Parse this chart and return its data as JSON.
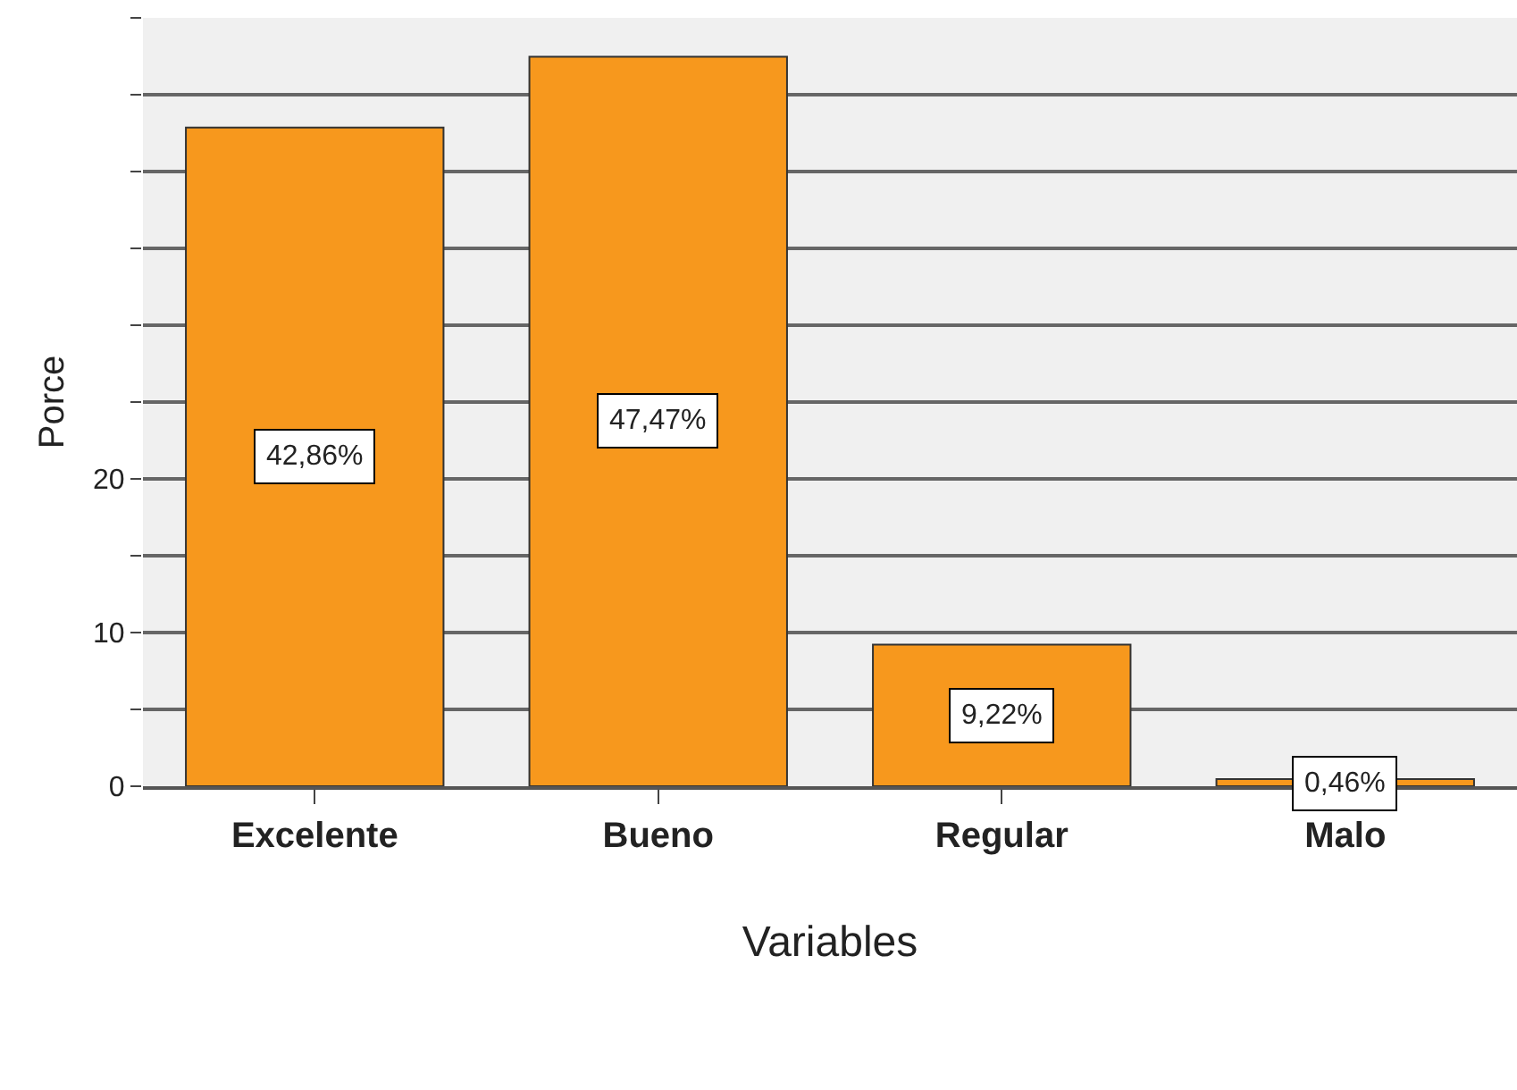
{
  "chart_data": {
    "type": "bar",
    "xlabel": "Variables",
    "ylabel": "Porce",
    "categories": [
      "Excelente",
      "Bueno",
      "Regular",
      "Malo"
    ],
    "values": [
      42.86,
      47.47,
      9.22,
      0.46
    ],
    "value_labels": [
      "42,86%",
      "47,47%",
      "9,22%",
      "0,46%"
    ],
    "color": "#f7981d",
    "ylim": [
      0,
      50
    ],
    "yticks": [
      0,
      {
        "value": 5,
        "label": null
      },
      10,
      {
        "value": 15,
        "label": null
      },
      20,
      {
        "value": 25,
        "label": null
      },
      {
        "value": 30,
        "label": null
      },
      {
        "value": 35,
        "label": null
      },
      {
        "value": 40,
        "label": null
      },
      {
        "value": 45,
        "label": null
      },
      {
        "value": 50,
        "label": null
      }
    ],
    "grid": "y"
  }
}
